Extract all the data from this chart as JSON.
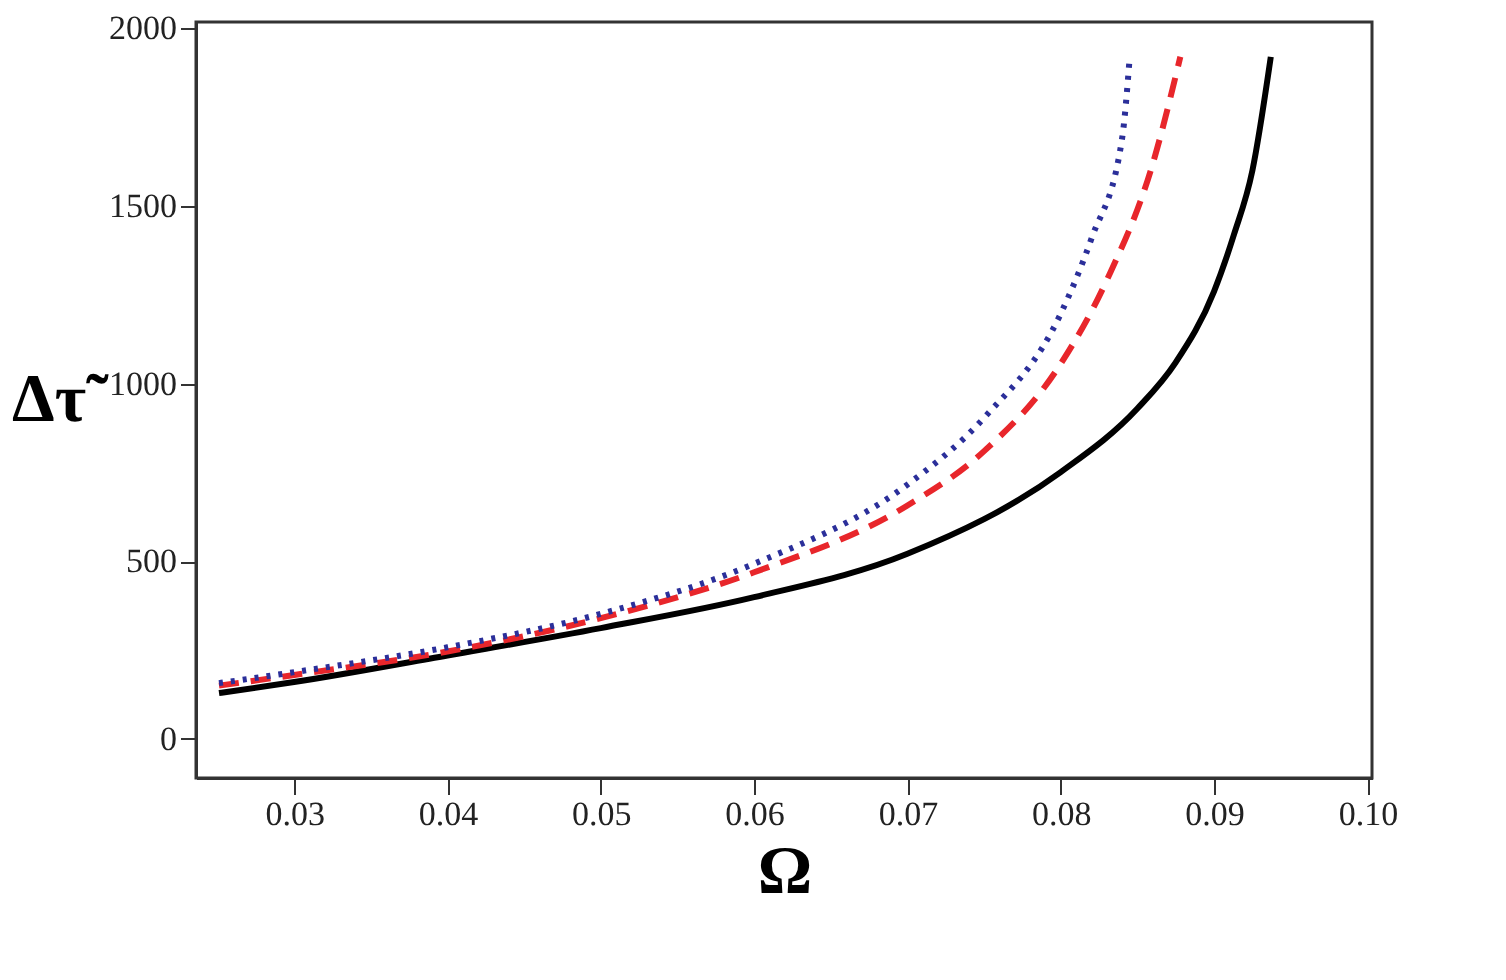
{
  "chart_data": {
    "type": "line",
    "xlabel": "Ω",
    "ylabel": "Δτ̃",
    "xlim": [
      0.0236,
      0.1003
    ],
    "ylim": [
      -110,
      2018
    ],
    "xticks": [
      {
        "value": 0.03,
        "label": "0.03"
      },
      {
        "value": 0.04,
        "label": "0.04"
      },
      {
        "value": 0.05,
        "label": "0.05"
      },
      {
        "value": 0.06,
        "label": "0.06"
      },
      {
        "value": 0.07,
        "label": "0.07"
      },
      {
        "value": 0.08,
        "label": "0.08"
      },
      {
        "value": 0.09,
        "label": "0.09"
      },
      {
        "value": 0.1,
        "label": "0.10"
      }
    ],
    "yticks": [
      0,
      500,
      1000,
      1500,
      2000
    ],
    "grid": false,
    "series": [
      {
        "color": "#000000",
        "line_style": "solid",
        "x": [
          0.0251,
          0.03,
          0.04,
          0.05,
          0.06,
          0.07,
          0.08,
          0.085,
          0.0875,
          0.09,
          0.0913,
          0.0925,
          0.0937
        ],
        "values": [
          129,
          160,
          235,
          312,
          399,
          521,
          751,
          930,
          1060,
          1260,
          1420,
          1600,
          1920
        ]
      },
      {
        "color": "#e8262b",
        "line_style": "dashed",
        "x": [
          0.0251,
          0.03,
          0.04,
          0.05,
          0.06,
          0.07,
          0.075,
          0.08,
          0.083,
          0.086,
          0.0878
        ],
        "values": [
          150,
          180,
          246,
          340,
          469,
          657,
          810,
          1056,
          1291,
          1619,
          1920
        ]
      },
      {
        "color": "#2b2f9a",
        "line_style": "dotted",
        "x": [
          0.0251,
          0.03,
          0.04,
          0.05,
          0.06,
          0.07,
          0.075,
          0.08,
          0.082,
          0.084,
          0.0845
        ],
        "values": [
          157,
          188,
          258,
          352,
          493,
          716,
          904,
          1197,
          1408,
          1690,
          1920
        ]
      }
    ]
  }
}
